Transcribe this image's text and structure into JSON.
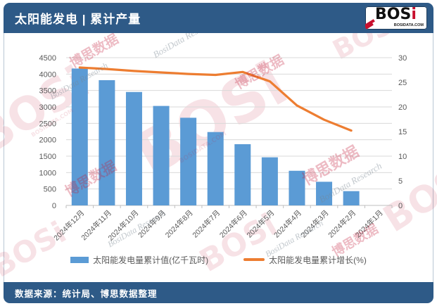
{
  "header": {
    "title": "太阳能发电 | 累计产量",
    "logo": {
      "brand": "BOS",
      "brand_accent": "i",
      "site": "BOSIDATA.COM"
    }
  },
  "footer": {
    "source": "数据来源：统计局、博思数据整理"
  },
  "watermarks": {
    "brand": "BOSi",
    "brand_cn": "博思数据",
    "research": "BosiData Research",
    "site": "BOSIDATA.COM"
  },
  "colors": {
    "bar": "#5b9bd5",
    "line": "#ed7d31",
    "banner": "#2e5a87",
    "axis_text": "#595959",
    "gridline": "#d9d9d9",
    "axis_line": "#bfbfbf",
    "logo_red": "#c8102e"
  },
  "chart_data": {
    "type": "bar",
    "subtype": "bar-line combo, dual axis",
    "title": "太阳能发电 | 累计产量",
    "categories": [
      "2024年12月",
      "2024年11月",
      "2024年10月",
      "2024年9月",
      "2024年8月",
      "2024年7月",
      "2024年6月",
      "2024年5月",
      "2024年4月",
      "2024年3月",
      "2024年2月",
      "2024年1月"
    ],
    "series": [
      {
        "name": "太阳能发电量累计值(亿千瓦时)",
        "type": "bar",
        "axis": "left",
        "color": "#5b9bd5",
        "values": [
          4170,
          3815,
          3455,
          3030,
          2670,
          2235,
          1865,
          1465,
          1055,
          720,
          435,
          null
        ]
      },
      {
        "name": "太阳能发电量累计增长(%)",
        "type": "line",
        "axis": "right",
        "color": "#ed7d31",
        "values": [
          28.0,
          27.7,
          27.3,
          27.0,
          26.7,
          26.5,
          27.1,
          25.2,
          20.3,
          17.4,
          15.2,
          null
        ]
      }
    ],
    "left_axis": {
      "min": 0,
      "max": 4500,
      "step": 500
    },
    "right_axis": {
      "min": 0,
      "max": 30,
      "step": 5
    },
    "grid": true,
    "legend_position": "bottom"
  }
}
